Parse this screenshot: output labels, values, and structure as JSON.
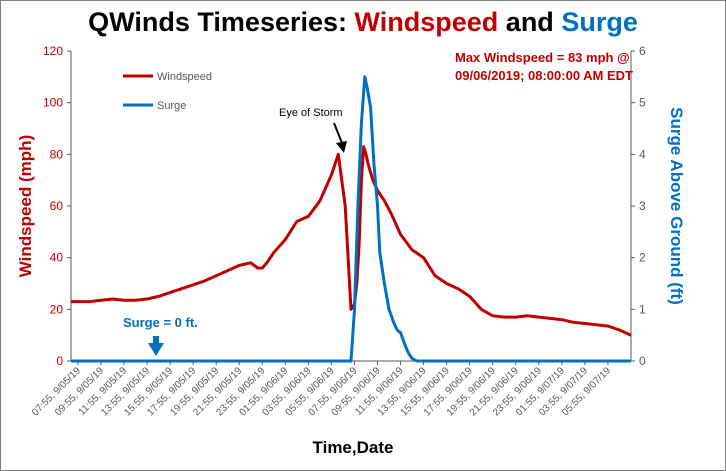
{
  "colors": {
    "windspeed": "#c00000",
    "surge": "#0070c0",
    "title_black": "#000000",
    "axis": "#595959",
    "grid": "#d9d9d9",
    "annotation_arrow": "#000000"
  },
  "chart_data": {
    "type": "line",
    "title_parts": [
      {
        "text": "QWinds Timeseries: ",
        "color": "#000000"
      },
      {
        "text": "Windspeed",
        "color": "#c00000"
      },
      {
        "text": " and ",
        "color": "#000000"
      },
      {
        "text": "Surge",
        "color": "#0070c0"
      }
    ],
    "xlabel": "Time,Date",
    "ylabel_left": "Windspeed (mph)",
    "ylabel_right": "Surge Above Ground (ft)",
    "ylim_left": [
      0,
      120
    ],
    "ylim_right": [
      0,
      6
    ],
    "yticks_left": [
      "0",
      "20",
      "40",
      "60",
      "80",
      "100",
      "120"
    ],
    "yticks_right": [
      "0",
      "1",
      "2",
      "3",
      "4",
      "5",
      "6"
    ],
    "grid": false,
    "legend_position": "top-left",
    "x_ticks": [
      "07:55, 9/05/19",
      "09:55, 9/05/19",
      "11:55, 9/05/19",
      "13:55, 9/05/19",
      "15:55, 9/05/19",
      "17:55, 9/05/19",
      "19:55, 9/05/19",
      "21:55, 9/05/19",
      "23:55, 9/05/19",
      "01:55, 9/06/19",
      "03:55, 9/06/19",
      "05:55, 9/06/19",
      "07:55, 9/06/19",
      "09:55, 9/06/19",
      "11:55, 9/06/19",
      "13:55, 9/06/19",
      "15:55, 9/06/19",
      "17:55, 9/06/19",
      "19:55, 9/06/19",
      "21:55, 9/06/19",
      "23:55, 9/06/19",
      "01:55, 9/07/19",
      "03:55, 9/07/19",
      "05:55, 9/07/19"
    ],
    "series": [
      {
        "name": "Windspeed",
        "axis": "left",
        "x": [
          -0.3,
          0.5,
          1.0,
          1.5,
          2.0,
          2.5,
          3.0,
          3.5,
          4.0,
          4.5,
          5.0,
          5.5,
          6.0,
          6.5,
          7.0,
          7.5,
          7.8,
          8.0,
          8.2,
          8.5,
          9.0,
          9.5,
          10.0,
          10.5,
          11.0,
          11.3,
          11.6,
          11.85,
          12.0,
          12.1,
          12.2,
          12.3,
          12.4,
          12.5,
          12.6,
          12.8,
          13.0,
          13.3,
          13.6,
          14.0,
          14.5,
          15.0,
          15.5,
          16.0,
          16.5,
          17.0,
          17.5,
          18.0,
          18.5,
          19.0,
          19.5,
          20.0,
          20.5,
          21.0,
          21.5,
          22.0,
          22.5,
          23.0,
          23.5,
          24.0
        ],
        "values": [
          23,
          23,
          23.5,
          24,
          23.5,
          23.5,
          24,
          25,
          26.5,
          28,
          29.5,
          31,
          33,
          35,
          37,
          38,
          36,
          36,
          38,
          42,
          47,
          54,
          56,
          62,
          72,
          80,
          60,
          20,
          22,
          30,
          45,
          70,
          83,
          80,
          76,
          70,
          66,
          62,
          57,
          49,
          43,
          40,
          33,
          30,
          28,
          25,
          20,
          17.5,
          17,
          17,
          17.5,
          17,
          16.5,
          16,
          15,
          14.5,
          14,
          13.5,
          12,
          10
        ]
      },
      {
        "name": "Surge",
        "axis": "right",
        "x": [
          -0.3,
          11.7,
          11.85,
          12.0,
          12.15,
          12.3,
          12.45,
          12.55,
          12.7,
          12.85,
          13.0,
          13.1,
          13.3,
          13.5,
          13.7,
          13.85,
          14.0,
          14.2,
          14.35,
          14.5,
          14.7,
          14.85,
          14.9,
          15.0,
          24.0
        ],
        "values": [
          0,
          0,
          0,
          1.0,
          3.0,
          4.6,
          5.5,
          5.3,
          4.9,
          3.8,
          3.0,
          2.1,
          1.5,
          1.0,
          0.75,
          0.6,
          0.55,
          0.3,
          0.15,
          0.05,
          0,
          0,
          0,
          0,
          0
        ]
      }
    ],
    "annotations": {
      "max_windspeed_line1": "Max Windspeed = 83 mph @",
      "max_windspeed_line2": "09/06/2019; 08:00:00 AM EDT",
      "eye_of_storm": "Eye of Storm",
      "surge_zero": "Surge = 0 ft."
    }
  }
}
